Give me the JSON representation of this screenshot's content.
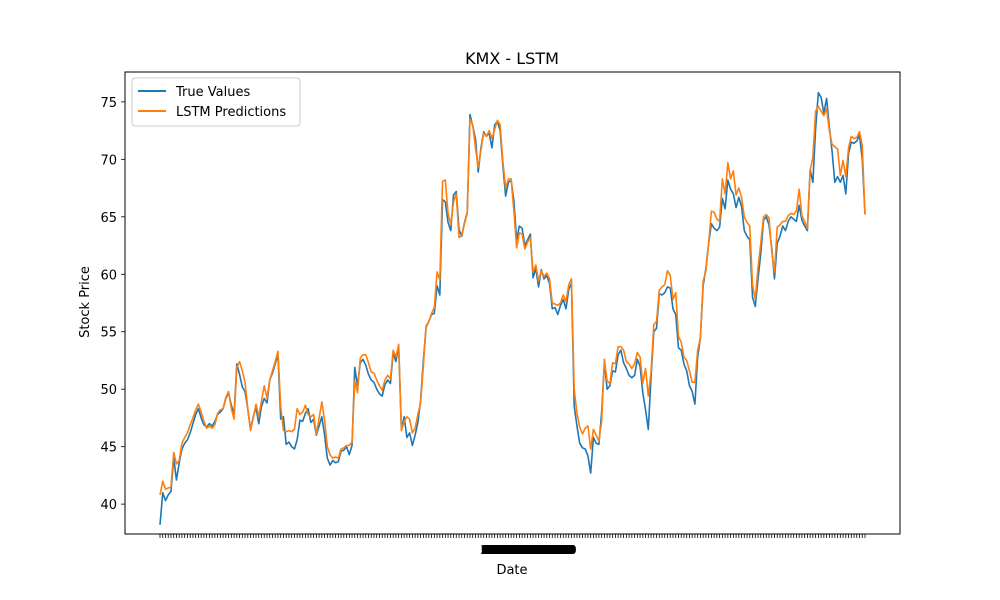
{
  "chart_data": {
    "type": "line",
    "title": "KMX - LSTM",
    "xlabel": "Date",
    "ylabel": "Stock Price",
    "ylim": [
      37.4,
      77.6
    ],
    "yticks": [
      40,
      45,
      50,
      55,
      60,
      65,
      70,
      75
    ],
    "grid": false,
    "legend_position": "top-left",
    "x_ticks_note": "dense, overlapping date tick labels (unreadable)",
    "series": [
      {
        "name": "True Values",
        "color": "#1f77b4",
        "values": [
          38.2,
          41.0,
          40.3,
          40.8,
          41.1,
          44.0,
          42.1,
          43.6,
          44.8,
          45.3,
          45.6,
          46.2,
          47.0,
          47.8,
          48.3,
          47.5,
          46.9,
          46.7,
          47.0,
          46.8,
          47.2,
          47.8,
          48.0,
          48.3,
          49.2,
          49.7,
          48.6,
          47.8,
          52.2,
          51.3,
          50.2,
          49.8,
          48.3,
          46.5,
          47.6,
          48.4,
          47.0,
          48.5,
          49.2,
          48.8,
          50.8,
          51.4,
          52.2,
          53.0,
          47.4,
          47.6,
          45.2,
          45.4,
          45.0,
          44.8,
          45.6,
          47.3,
          47.2,
          47.9,
          48.3,
          47.1,
          47.4,
          46.0,
          46.8,
          47.6,
          46.0,
          44.0,
          43.4,
          43.8,
          43.6,
          43.7,
          44.6,
          44.7,
          45.0,
          44.3,
          45.1,
          51.9,
          50.3,
          52.3,
          52.6,
          52.1,
          51.3,
          50.8,
          50.6,
          50.0,
          49.6,
          49.4,
          50.4,
          50.8,
          50.5,
          53.2,
          52.4,
          53.8,
          46.5,
          47.6,
          45.8,
          46.2,
          45.1,
          46.0,
          47.1,
          49.0,
          52.5,
          55.4,
          55.9,
          56.5,
          56.6,
          59.0,
          58.2,
          66.5,
          66.3,
          64.5,
          63.8,
          66.9,
          67.2,
          63.9,
          63.3,
          64.5,
          65.4,
          73.9,
          72.9,
          71.8,
          68.9,
          71.0,
          72.4,
          72.0,
          72.3,
          71.0,
          73.0,
          73.3,
          72.5,
          69.4,
          66.8,
          68.0,
          68.2,
          66.4,
          63.0,
          64.2,
          64.0,
          62.5,
          63.0,
          63.5,
          59.7,
          60.5,
          58.9,
          60.4,
          59.6,
          59.9,
          59.2,
          57.0,
          57.1,
          56.5,
          57.3,
          57.8,
          57.0,
          58.7,
          59.2,
          48.5,
          46.8,
          45.3,
          44.9,
          44.8,
          44.2,
          42.7,
          45.8,
          45.3,
          45.2,
          48.0,
          52.3,
          50.0,
          50.3,
          51.6,
          51.5,
          53.0,
          53.4,
          52.3,
          51.8,
          51.2,
          51.0,
          51.2,
          52.6,
          52.0,
          49.7,
          48.2,
          46.5,
          51.0,
          55.0,
          55.3,
          58.3,
          58.2,
          58.4,
          58.9,
          58.8,
          57.0,
          56.5,
          53.6,
          53.4,
          52.2,
          51.6,
          50.3,
          49.8,
          48.7,
          52.8,
          54.5,
          59.0,
          60.5,
          62.7,
          64.4,
          64.0,
          63.8,
          64.1,
          66.6,
          65.7,
          68.2,
          67.4,
          67.0,
          65.8,
          66.7,
          65.9,
          63.8,
          63.3,
          63.0,
          58.0,
          57.2,
          59.6,
          61.8,
          64.7,
          65.0,
          64.3,
          62.3,
          59.6,
          62.7,
          63.3,
          64.2,
          63.8,
          64.6,
          65.0,
          64.8,
          64.6,
          66.0,
          64.7,
          64.2,
          63.8,
          69.1,
          68.0,
          72.7,
          75.8,
          75.4,
          74.0,
          75.3,
          72.8,
          70.7,
          68.0,
          68.5,
          68.0,
          68.6,
          67.0,
          70.5,
          71.5,
          71.4,
          71.6,
          72.1,
          70.0,
          65.2
        ]
      },
      {
        "name": "LSTM Predictions",
        "color": "#ff7f0e",
        "values": [
          40.8,
          42.0,
          41.3,
          41.4,
          41.5,
          44.5,
          43.5,
          43.8,
          45.3,
          45.8,
          46.2,
          46.9,
          47.5,
          48.2,
          48.7,
          48.0,
          47.2,
          46.6,
          46.8,
          46.6,
          46.9,
          47.9,
          48.2,
          48.3,
          49.3,
          49.8,
          48.3,
          47.4,
          51.9,
          52.4,
          51.6,
          50.6,
          48.3,
          46.4,
          47.5,
          48.7,
          47.6,
          49.0,
          50.3,
          49.2,
          50.8,
          51.6,
          52.4,
          53.3,
          48.5,
          46.4,
          46.3,
          46.4,
          46.3,
          46.5,
          48.3,
          47.8,
          48.0,
          48.6,
          47.8,
          47.6,
          47.8,
          46.1,
          47.5,
          48.9,
          47.3,
          45.0,
          44.3,
          44.0,
          44.1,
          44.0,
          44.8,
          44.9,
          45.1,
          45.1,
          45.4,
          50.7,
          49.7,
          52.7,
          53.0,
          53.0,
          52.3,
          51.5,
          51.4,
          50.8,
          50.3,
          49.9,
          50.8,
          51.2,
          50.9,
          53.4,
          52.8,
          53.9,
          46.4,
          47.2,
          47.6,
          47.4,
          46.2,
          46.6,
          47.8,
          48.8,
          52.0,
          55.5,
          55.9,
          56.6,
          57.1,
          60.2,
          59.5,
          68.1,
          68.2,
          65.3,
          64.3,
          66.3,
          67.0,
          63.2,
          63.4,
          64.4,
          65.3,
          73.5,
          73.0,
          71.0,
          69.3,
          70.8,
          72.3,
          72.0,
          72.5,
          71.8,
          72.6,
          73.4,
          73.0,
          69.8,
          67.5,
          68.3,
          68.3,
          65.5,
          62.3,
          63.6,
          63.5,
          62.2,
          62.8,
          63.2,
          60.2,
          60.8,
          59.4,
          60.3,
          59.8,
          60.1,
          59.6,
          57.5,
          57.4,
          57.3,
          57.5,
          58.2,
          57.6,
          59.1,
          59.6,
          50.0,
          47.9,
          46.7,
          46.1,
          46.6,
          46.8,
          44.8,
          46.5,
          46.0,
          45.5,
          47.2,
          52.6,
          50.7,
          50.5,
          52.3,
          52.2,
          53.7,
          53.7,
          53.4,
          52.4,
          52.2,
          51.8,
          52.2,
          53.2,
          52.8,
          50.5,
          51.8,
          49.4,
          51.5,
          55.6,
          55.9,
          58.6,
          58.9,
          59.1,
          60.3,
          59.9,
          57.8,
          58.4,
          54.6,
          54.1,
          52.8,
          52.5,
          51.6,
          50.6,
          50.6,
          53.4,
          54.5,
          59.4,
          60.3,
          62.7,
          65.5,
          65.4,
          64.8,
          64.6,
          68.3,
          67.0,
          69.7,
          68.3,
          69.0,
          66.9,
          67.5,
          66.7,
          65.0,
          64.5,
          64.2,
          59.1,
          57.8,
          60.6,
          62.7,
          65.0,
          65.2,
          64.9,
          62.0,
          60.2,
          64.1,
          64.3,
          64.6,
          64.6,
          65.1,
          65.3,
          65.2,
          65.5,
          67.4,
          65.1,
          64.6,
          64.0,
          69.0,
          70.2,
          74.2,
          74.6,
          74.2,
          73.8,
          74.4,
          72.5,
          71.3,
          71.1,
          70.9,
          68.6,
          69.9,
          68.5,
          71.0,
          72.0,
          71.8,
          71.9,
          72.4,
          71.2,
          65.2
        ]
      }
    ]
  }
}
